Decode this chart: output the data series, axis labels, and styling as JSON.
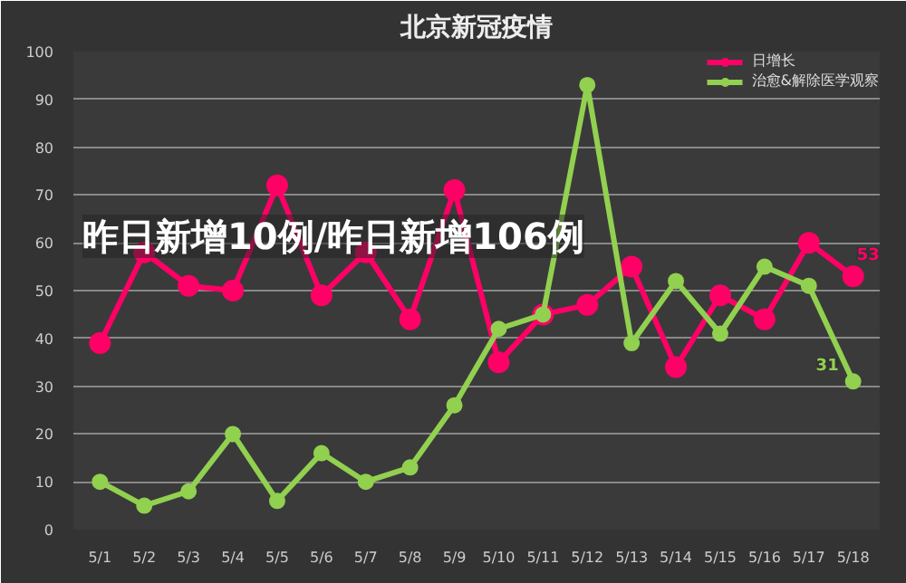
{
  "chart_data": {
    "type": "line",
    "title": "北京新冠疫情",
    "categories": [
      "5/1",
      "5/2",
      "5/3",
      "5/4",
      "5/5",
      "5/6",
      "5/7",
      "5/8",
      "5/9",
      "5/10",
      "5/11",
      "5/12",
      "5/13",
      "5/14",
      "5/15",
      "5/16",
      "5/17",
      "5/18"
    ],
    "series": [
      {
        "name": "日增长",
        "color": "#ff0066",
        "values": [
          39,
          58,
          51,
          50,
          72,
          49,
          58,
          44,
          71,
          35,
          45,
          47,
          55,
          34,
          49,
          44,
          60,
          53
        ],
        "value_labels": [
          null,
          null,
          null,
          null,
          null,
          null,
          null,
          null,
          null,
          null,
          null,
          null,
          null,
          null,
          null,
          null,
          null,
          "53"
        ]
      },
      {
        "name": "治愈&解除医学观察",
        "color": "#92d050",
        "values": [
          10,
          5,
          8,
          20,
          6,
          16,
          10,
          13,
          26,
          42,
          45,
          93,
          39,
          52,
          41,
          55,
          51,
          31
        ],
        "value_labels": [
          null,
          null,
          null,
          null,
          null,
          null,
          null,
          null,
          null,
          null,
          null,
          null,
          null,
          null,
          null,
          null,
          null,
          "31"
        ]
      }
    ],
    "ylim": [
      0,
      100
    ],
    "yticks": [
      0,
      10,
      20,
      30,
      40,
      50,
      60,
      70,
      80,
      90,
      100
    ],
    "grid": "y",
    "legend": "top right",
    "marker": "circle",
    "annotations": [
      "昨日新增10例/昨日新增106例"
    ]
  }
}
